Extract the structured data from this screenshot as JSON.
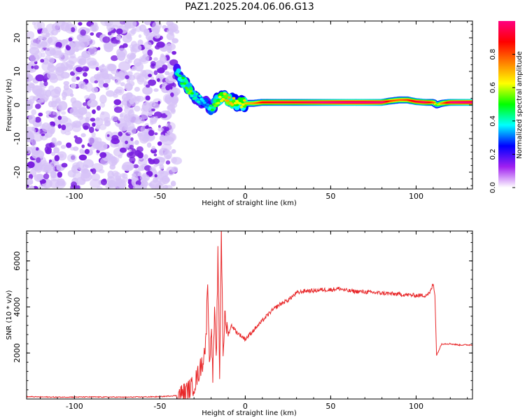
{
  "title": "PAZ1.2025.204.06.06.G13",
  "colors": {
    "background": "#ffffff",
    "snr_line": "#e8282a",
    "noise_purple": "#7a1fe0",
    "noise_light": "#d6c2f7"
  },
  "chart_data": [
    {
      "type": "heatmap",
      "xlabel": "Height of straight line (km)",
      "ylabel": "Frequency (Hz)",
      "xlim": [
        -128,
        133
      ],
      "ylim": [
        -25,
        25
      ],
      "xticks": [
        -100,
        -50,
        0,
        50,
        100
      ],
      "xtick_labels": [
        "-100",
        "-50",
        "0",
        "50",
        "100"
      ],
      "yticks": [
        -20,
        -10,
        0,
        10,
        20
      ],
      "ytick_labels": [
        "-20",
        "-10",
        "0",
        "10",
        "20"
      ],
      "ridge": {
        "x": [
          -40,
          -38,
          -35,
          -32,
          -30,
          -28,
          -25,
          -22,
          -20,
          -17,
          -15,
          -12,
          -10,
          -7,
          -5,
          -2,
          0,
          5,
          10,
          20,
          30,
          40,
          50,
          60,
          70,
          80,
          85,
          90,
          95,
          100,
          105,
          110,
          112,
          115,
          120,
          125,
          133
        ],
        "y": [
          10,
          8,
          6,
          4,
          3,
          2,
          1,
          0,
          -1,
          1,
          2,
          3,
          1.5,
          1,
          0.5,
          0.5,
          0.5,
          0.5,
          0.8,
          0.8,
          0.8,
          0.8,
          0.8,
          0.8,
          0.8,
          0.8,
          1.2,
          1.5,
          1.5,
          1.0,
          0.8,
          0.8,
          0,
          0.5,
          0.8,
          0.8,
          0.8
        ],
        "amplitude": [
          0.3,
          0.35,
          0.4,
          0.45,
          0.3,
          0.3,
          0.25,
          0.2,
          0.35,
          0.45,
          0.5,
          0.55,
          0.6,
          0.55,
          0.5,
          0.5,
          0.55,
          0.6,
          0.75,
          0.8,
          0.8,
          0.85,
          0.9,
          0.95,
          0.95,
          0.9,
          0.7,
          0.65,
          0.7,
          0.8,
          0.85,
          0.7,
          0.4,
          0.6,
          0.85,
          0.9,
          0.95
        ]
      },
      "noise_region_x": [
        -128,
        -40
      ]
    },
    {
      "type": "colorbar",
      "label": "Normalized spectral amplitude",
      "ticks": [
        0.0,
        0.2,
        0.4,
        0.6,
        0.8
      ],
      "tick_labels": [
        "0.0",
        "0.2",
        "0.4",
        "0.6",
        "0.8"
      ],
      "range": [
        0,
        1
      ],
      "colors": [
        "#ffffff",
        "#a020f0",
        "#0000ff",
        "#00ffff",
        "#00ff00",
        "#ffff00",
        "#ff8000",
        "#ff0000",
        "#ff0080"
      ]
    },
    {
      "type": "line",
      "xlabel": "Height of straight line (km)",
      "ylabel": "SNR (10 * v/v)",
      "xlim": [
        -128,
        133
      ],
      "ylim": [
        0,
        7300
      ],
      "xticks": [
        -100,
        -50,
        0,
        50,
        100
      ],
      "xtick_labels": [
        "-100",
        "-50",
        "0",
        "50",
        "100"
      ],
      "yticks": [
        2000,
        4000,
        6000
      ],
      "ytick_labels": [
        "2000",
        "4000",
        "6000"
      ],
      "series": [
        {
          "x": [
            -128,
            -110,
            -90,
            -70,
            -50,
            -40,
            -35,
            -30,
            -28,
            -25,
            -23,
            -22,
            -21,
            -20,
            -19,
            -18,
            -17,
            -16,
            -15,
            -14,
            -13,
            -12,
            -10,
            -8,
            -5,
            0,
            5,
            10,
            15,
            20,
            25,
            30,
            35,
            40,
            45,
            50,
            55,
            60,
            70,
            80,
            90,
            100,
            105,
            108,
            110,
            111,
            112,
            115,
            120,
            125,
            133
          ],
          "y": [
            100,
            80,
            90,
            80,
            100,
            150,
            300,
            600,
            1000,
            1600,
            2500,
            5400,
            1500,
            3200,
            1000,
            3800,
            1500,
            6200,
            1000,
            7300,
            2000,
            3500,
            2800,
            3200,
            2900,
            2600,
            3000,
            3400,
            3800,
            4100,
            4300,
            4600,
            4700,
            4700,
            4750,
            4750,
            4800,
            4700,
            4650,
            4600,
            4550,
            4500,
            4500,
            4600,
            5000,
            4500,
            1900,
            2400,
            2400,
            2350,
            2350
          ]
        }
      ]
    }
  ]
}
